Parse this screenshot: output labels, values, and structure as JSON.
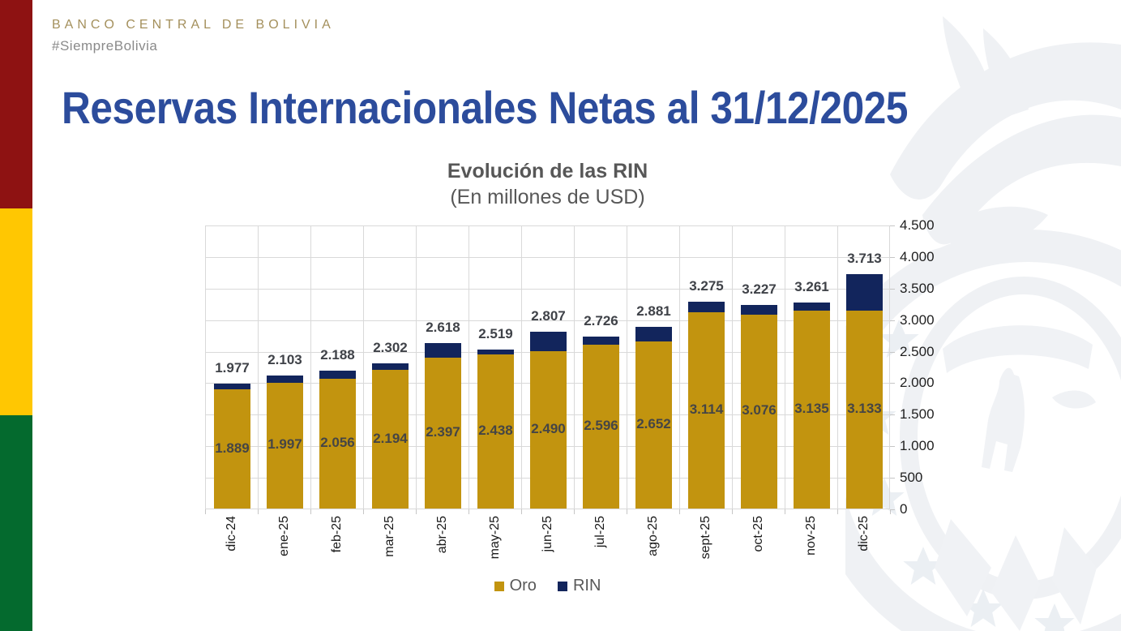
{
  "brand": {
    "name": "BANCO CENTRAL DE BOLIVIA",
    "tagline": "#SiempreBolivia"
  },
  "page_title": "Reservas Internacionales Netas al 31/12/2025",
  "chart_data": {
    "type": "bar",
    "stacked": true,
    "title": "Evolución de las RIN",
    "subtitle": "(En millones de USD)",
    "categories": [
      "dic-24",
      "ene-25",
      "feb-25",
      "mar-25",
      "abr-25",
      "may-25",
      "jun-25",
      "jul-25",
      "ago-25",
      "sept-25",
      "oct-25",
      "nov-25",
      "dic-25"
    ],
    "series": [
      {
        "name": "Oro",
        "color": "#C2940F",
        "values": [
          1889,
          1997,
          2056,
          2194,
          2397,
          2438,
          2490,
          2596,
          2652,
          3114,
          3076,
          3135,
          3133
        ],
        "labels": [
          "1.889",
          "1.997",
          "2.056",
          "2.194",
          "2.397",
          "2.438",
          "2.490",
          "2.596",
          "2.652",
          "3.114",
          "3.076",
          "3.135",
          "3.133"
        ]
      },
      {
        "name": "RIN",
        "color": "#12255C",
        "values": [
          88,
          106,
          132,
          108,
          221,
          81,
          317,
          130,
          229,
          161,
          151,
          126,
          580
        ]
      }
    ],
    "totals": [
      1977,
      2103,
      2188,
      2302,
      2618,
      2519,
      2807,
      2726,
      2881,
      3275,
      3227,
      3261,
      3713
    ],
    "total_labels": [
      "1.977",
      "2.103",
      "2.188",
      "2.302",
      "2.618",
      "2.519",
      "2.807",
      "2.726",
      "2.881",
      "3.275",
      "3.227",
      "3.261",
      "3.713"
    ],
    "ylim": [
      0,
      4500
    ],
    "ytick_step": 500,
    "ytick_labels": [
      "0",
      "500",
      "1.000",
      "1.500",
      "2.000",
      "2.500",
      "3.000",
      "3.500",
      "4.000",
      "4.500"
    ],
    "grid": true,
    "legend_position": "bottom",
    "legend": [
      {
        "label": "Oro",
        "color": "#C2940F"
      },
      {
        "label": "RIN",
        "color": "#12255C"
      }
    ]
  },
  "colors": {
    "stripe_red": "#8E1212",
    "stripe_yellow": "#FFC702",
    "stripe_green": "#046A2E",
    "title_blue": "#2C4C9C",
    "brand_gold": "#A4905C",
    "gridline": "#D9D9D9"
  }
}
